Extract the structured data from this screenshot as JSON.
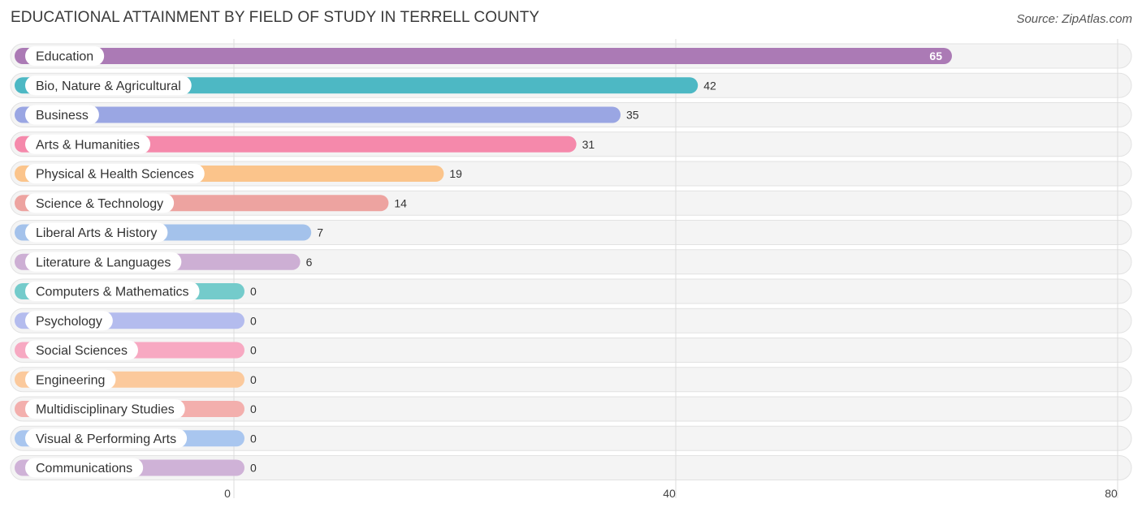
{
  "header": {
    "title": "EDUCATIONAL ATTAINMENT BY FIELD OF STUDY IN TERRELL COUNTY",
    "source": "Source: ZipAtlas.com"
  },
  "chart_data": {
    "type": "bar",
    "orientation": "horizontal",
    "title": "EDUCATIONAL ATTAINMENT BY FIELD OF STUDY IN TERRELL COUNTY",
    "xlim": [
      0,
      80
    ],
    "xticks": [
      0,
      40,
      80
    ],
    "grid": true,
    "categories": [
      "Education",
      "Bio, Nature & Agricultural",
      "Business",
      "Arts & Humanities",
      "Physical & Health Sciences",
      "Science & Technology",
      "Liberal Arts & History",
      "Literature & Languages",
      "Computers & Mathematics",
      "Psychology",
      "Social Sciences",
      "Engineering",
      "Multidisciplinary Studies",
      "Visual & Performing Arts",
      "Communications"
    ],
    "values": [
      65,
      42,
      35,
      31,
      19,
      14,
      7,
      6,
      0,
      0,
      0,
      0,
      0,
      0,
      0
    ],
    "colors": [
      "#ab7ab5",
      "#4db8c4",
      "#9aa6e3",
      "#f589ab",
      "#fbc48b",
      "#eda3a0",
      "#a4c2eb",
      "#cdafd4",
      "#74cbcb",
      "#b4bcee",
      "#f7a9c2",
      "#fbc99c",
      "#f3afad",
      "#a9c6ef",
      "#cfb2d7"
    ]
  }
}
